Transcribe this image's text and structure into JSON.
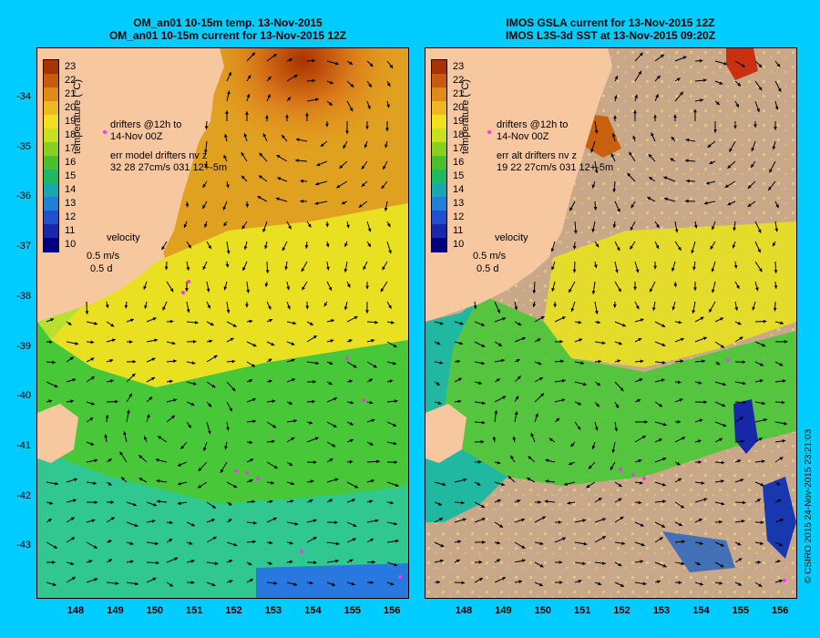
{
  "left_title": {
    "line1": "OM_an01 10-15m temp. 13-Nov-2015",
    "line2": "OM_an01 10-15m current for 13-Nov-2015 12Z"
  },
  "right_title": {
    "line1": "IMOS GSLA current for 13-Nov-2015 12Z",
    "line2": "IMOS L3S-3d SST at 13-Nov-2015 09:20Z"
  },
  "colorbar": {
    "title": "temperature (°C)",
    "ticks": [
      "23",
      "22",
      "21",
      "20",
      "19",
      "18",
      "17",
      "16",
      "15",
      "14",
      "13",
      "12",
      "11",
      "10"
    ],
    "colors": [
      "#a83200",
      "#c85a10",
      "#e08a18",
      "#f0b820",
      "#f0e020",
      "#c8e020",
      "#88d020",
      "#48c030",
      "#20b860",
      "#18a8b0",
      "#2080d8",
      "#2050d0",
      "#1828a8",
      "#000080"
    ]
  },
  "left_annotations": {
    "drifters_line1": "drifters @12h to",
    "drifters_line2": "14-Nov 00Z",
    "err_line1": "err model drifters nv z",
    "err_line2": "32 28 27cm/s 031 12+-5m",
    "velocity": "velocity",
    "vel_scale1": "0.5 m/s",
    "vel_scale2": "0.5 d"
  },
  "right_annotations": {
    "drifters_line1": "drifters @12h to",
    "drifters_line2": "14-Nov 00Z",
    "err_line1": "err alt drifters nv z",
    "err_line2": "19 22 27cm/s 031 12+-5m",
    "velocity": "velocity",
    "vel_scale1": "0.5 m/s",
    "vel_scale2": "0.5 d"
  },
  "latitude_labels": [
    "-34",
    "-35",
    "-36",
    "-37",
    "-38",
    "-39",
    "-40",
    "-41",
    "-42",
    "-43"
  ],
  "longitude_labels": [
    "148",
    "149",
    "150",
    "151",
    "152",
    "153",
    "154",
    "155",
    "156"
  ],
  "credit": "© CSIRO 2015   24-Nov-2015 23:21:03",
  "colors": {
    "background": "#00ccff",
    "land": "#f7c8a0",
    "missing": "#c8a888",
    "drifter": "#ff30ff"
  }
}
